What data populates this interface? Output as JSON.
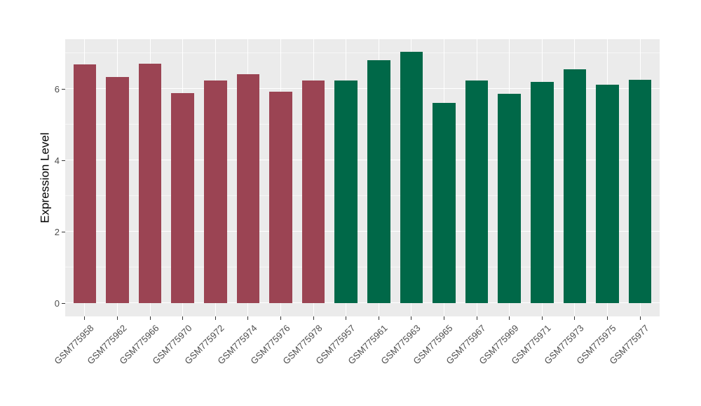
{
  "figure": {
    "background": "#FFFFFF",
    "panel_background": "#EBEBEB",
    "gridline_major_color": "#FFFFFF",
    "gridline_minor_color": "rgba(255,255,255,0.55)",
    "axis_text_color": "#4D4D4D",
    "axis_title_color": "#000000",
    "tick_mark_color": "#333333"
  },
  "chart_data": {
    "type": "bar",
    "title": "",
    "xlabel": "",
    "ylabel": "Expression Level",
    "ylim": [
      0,
      7.39
    ],
    "yticks_major": [
      0,
      2,
      4,
      6
    ],
    "yticks_minor": [
      1,
      3,
      5,
      7
    ],
    "grid": "white major+minor horizontal lines and vertical lines at each category center, on gray panel",
    "legend_position": "none",
    "bar_width_fraction": 0.7,
    "group_colors": {
      "red": "#9B4453",
      "green": "#006848"
    },
    "categories": [
      "GSM775958",
      "GSM775962",
      "GSM775966",
      "GSM775970",
      "GSM775972",
      "GSM775974",
      "GSM775976",
      "GSM775978",
      "GSM775957",
      "GSM775961",
      "GSM775963",
      "GSM775965",
      "GSM775967",
      "GSM775969",
      "GSM775971",
      "GSM775973",
      "GSM775975",
      "GSM775977"
    ],
    "values": [
      6.69,
      6.33,
      6.71,
      5.89,
      6.24,
      6.41,
      5.93,
      6.24,
      6.23,
      6.81,
      7.03,
      5.6,
      6.23,
      5.86,
      6.19,
      6.55,
      6.11,
      6.25
    ],
    "bars": [
      {
        "label": "GSM775958",
        "value": 6.69,
        "group": "red"
      },
      {
        "label": "GSM775962",
        "value": 6.33,
        "group": "red"
      },
      {
        "label": "GSM775966",
        "value": 6.71,
        "group": "red"
      },
      {
        "label": "GSM775970",
        "value": 5.89,
        "group": "red"
      },
      {
        "label": "GSM775972",
        "value": 6.24,
        "group": "red"
      },
      {
        "label": "GSM775974",
        "value": 6.41,
        "group": "red"
      },
      {
        "label": "GSM775976",
        "value": 5.93,
        "group": "red"
      },
      {
        "label": "GSM775978",
        "value": 6.24,
        "group": "red"
      },
      {
        "label": "GSM775957",
        "value": 6.23,
        "group": "green"
      },
      {
        "label": "GSM775961",
        "value": 6.81,
        "group": "green"
      },
      {
        "label": "GSM775963",
        "value": 7.03,
        "group": "green"
      },
      {
        "label": "GSM775965",
        "value": 5.6,
        "group": "green"
      },
      {
        "label": "GSM775967",
        "value": 6.23,
        "group": "green"
      },
      {
        "label": "GSM775969",
        "value": 5.86,
        "group": "green"
      },
      {
        "label": "GSM775971",
        "value": 6.19,
        "group": "green"
      },
      {
        "label": "GSM775973",
        "value": 6.55,
        "group": "green"
      },
      {
        "label": "GSM775975",
        "value": 6.11,
        "group": "green"
      },
      {
        "label": "GSM775977",
        "value": 6.25,
        "group": "green"
      }
    ]
  }
}
